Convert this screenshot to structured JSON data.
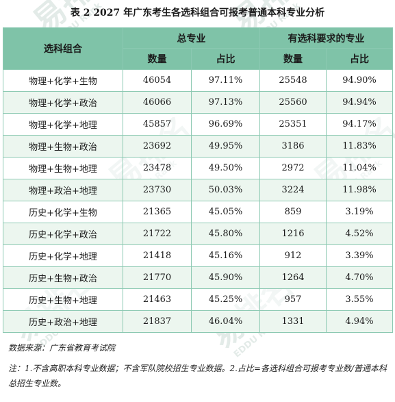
{
  "title": "表 2  2027 年广东考生各选科组合可报考普通本科专业分析",
  "header": {
    "combo": "选科组合",
    "total_group": "总专业",
    "required_group": "有选科要求的专业",
    "count": "数量",
    "ratio": "占比"
  },
  "rows": [
    {
      "combo": "物理+化学+生物",
      "total_count": "46054",
      "total_ratio": "97.11%",
      "req_count": "25548",
      "req_ratio": "94.90%"
    },
    {
      "combo": "物理+化学+政治",
      "total_count": "46066",
      "total_ratio": "97.13%",
      "req_count": "25560",
      "req_ratio": "94.94%"
    },
    {
      "combo": "物理+化学+地理",
      "total_count": "45857",
      "total_ratio": "96.69%",
      "req_count": "25351",
      "req_ratio": "94.17%"
    },
    {
      "combo": "物理+生物+政治",
      "total_count": "23692",
      "total_ratio": "49.95%",
      "req_count": "3186",
      "req_ratio": "11.83%"
    },
    {
      "combo": "物理+生物+地理",
      "total_count": "23478",
      "total_ratio": "49.50%",
      "req_count": "2972",
      "req_ratio": "11.04%"
    },
    {
      "combo": "物理+政治+地理",
      "total_count": "23730",
      "total_ratio": "50.03%",
      "req_count": "3224",
      "req_ratio": "11.98%"
    },
    {
      "combo": "历史+化学+生物",
      "total_count": "21365",
      "total_ratio": "45.05%",
      "req_count": "859",
      "req_ratio": "3.19%"
    },
    {
      "combo": "历史+化学+政治",
      "total_count": "21722",
      "total_ratio": "45.80%",
      "req_count": "1216",
      "req_ratio": "4.52%"
    },
    {
      "combo": "历史+化学+地理",
      "total_count": "21418",
      "total_ratio": "45.16%",
      "req_count": "912",
      "req_ratio": "3.39%"
    },
    {
      "combo": "历史+生物+政治",
      "total_count": "21770",
      "total_ratio": "45.90%",
      "req_count": "1264",
      "req_ratio": "4.70%"
    },
    {
      "combo": "历史+生物+地理",
      "total_count": "21463",
      "total_ratio": "45.25%",
      "req_count": "957",
      "req_ratio": "3.55%"
    },
    {
      "combo": "历史+政治+地理",
      "total_count": "21837",
      "total_ratio": "46.04%",
      "req_count": "1331",
      "req_ratio": "4.94%"
    }
  ],
  "source_note": "数据来源：广东省教育考试院",
  "footnote": "注：1.不含高职本科专业数据；不含军队院校招生专业数据。2.占比=各选科组合可报考专业数/普通本科总招生专业数。",
  "watermark": {
    "text": "易排名",
    "subtext": "EDDU Rank",
    "color": "#dde7e3"
  }
}
